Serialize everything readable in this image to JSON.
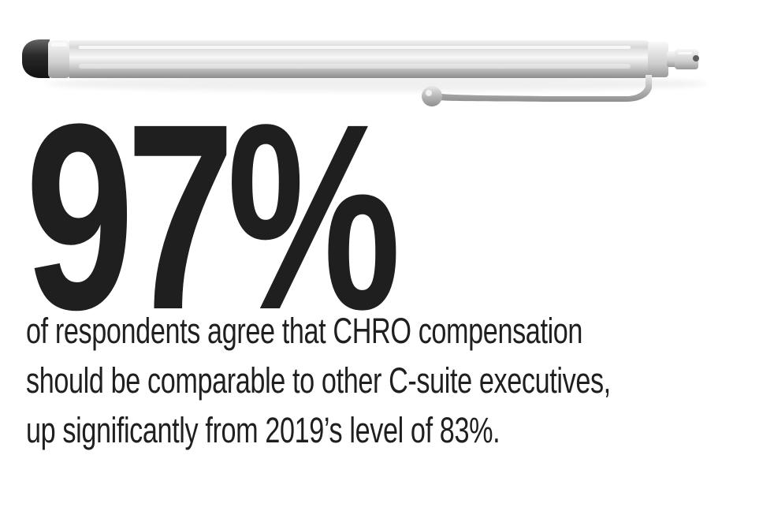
{
  "infographic": {
    "stat_value": "97%",
    "description_lines": [
      "of respondents agree that CHRO compensation",
      "should be comparable to other C-suite executives,",
      "up significantly from 2019’s level of 83%."
    ],
    "image": {
      "subject": "stylus-pen-icon"
    }
  }
}
